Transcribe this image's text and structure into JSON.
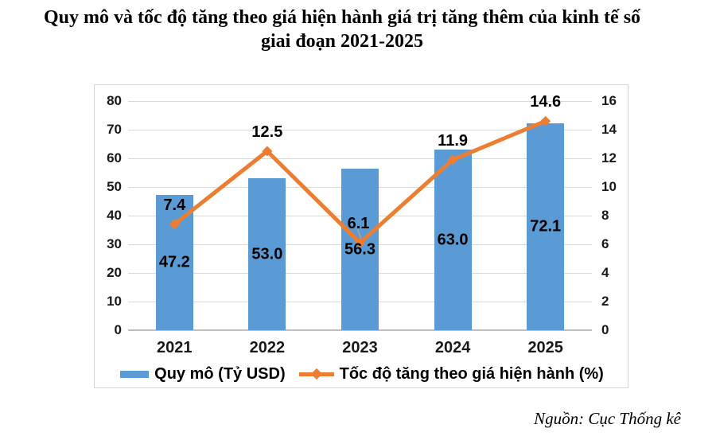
{
  "title": {
    "line1": "Quy mô và tốc độ tăng theo giá hiện hành giá trị tăng thêm của kinh tế số",
    "line2": "giai đoạn 2021-2025"
  },
  "source": "Nguồn: Cục Thống kê",
  "colors": {
    "bar": "#5B9BD5",
    "line": "#ED7D31",
    "grid": "#D9D9D9",
    "axis": "#BFBFBF",
    "leader": "#B9A18A",
    "text": "#000000"
  },
  "legend": [
    {
      "label": "Quy mô (Tỷ USD)",
      "type": "bar"
    },
    {
      "label": "Tốc độ tăng theo giá hiện hành (%)",
      "type": "line"
    }
  ],
  "chart_data": {
    "type": "combo-bar-line",
    "title": "Quy mô và tốc độ tăng theo giá hiện hành giá trị tăng thêm của kinh tế số giai đoạn 2021-2025",
    "categories": [
      "2021",
      "2022",
      "2023",
      "2024",
      "2025"
    ],
    "series": [
      {
        "name": "Quy mô (Tỷ USD)",
        "type": "bar",
        "axis": "left",
        "values": [
          47.2,
          53.0,
          56.3,
          63.0,
          72.1
        ]
      },
      {
        "name": "Tốc độ tăng theo giá hiện hành (%)",
        "type": "line",
        "axis": "right",
        "values": [
          7.4,
          12.5,
          6.1,
          11.9,
          14.6
        ]
      }
    ],
    "left_axis": {
      "min": 0,
      "max": 80,
      "step": 10,
      "ticks": [
        0,
        10,
        20,
        30,
        40,
        50,
        60,
        70,
        80
      ]
    },
    "right_axis": {
      "min": 0,
      "max": 16,
      "step": 2,
      "ticks": [
        0,
        2,
        4,
        6,
        8,
        10,
        12,
        14,
        16
      ]
    },
    "grid": true,
    "legend_position": "bottom",
    "label_leader_point": 2
  }
}
